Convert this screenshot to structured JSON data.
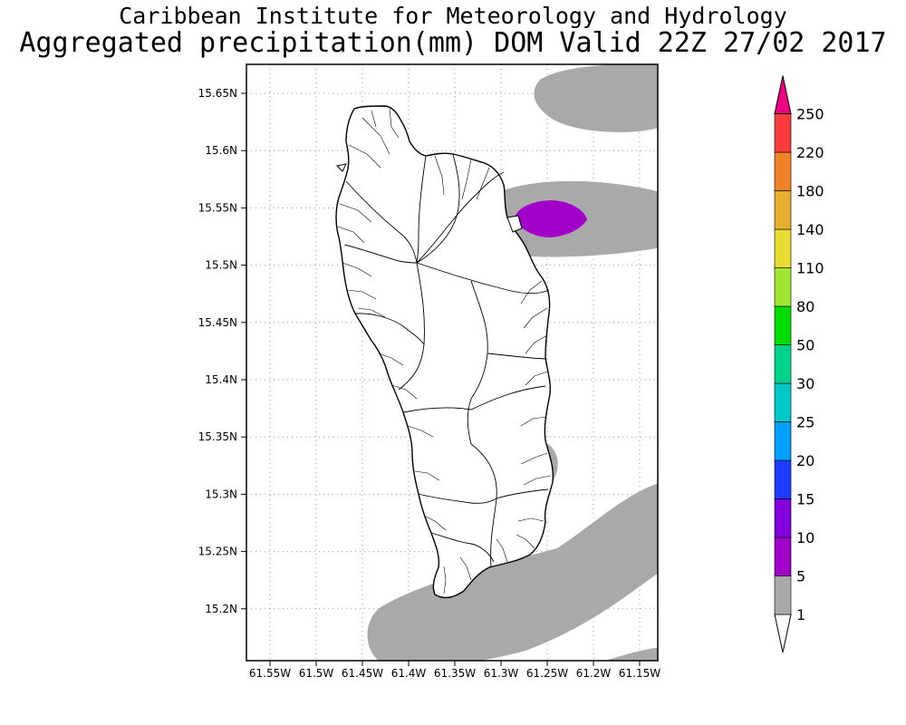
{
  "header": {
    "institute": "Caribbean Institute for Meteorology and Hydrology",
    "product": "Aggregated precipitation(mm) DOM Valid 22Z 27/02 2017"
  },
  "map": {
    "region": "Dominica",
    "latitude_labels": [
      "15.65N",
      "15.6N",
      "15.55N",
      "15.5N",
      "15.45N",
      "15.4N",
      "15.35N",
      "15.3N",
      "15.25N",
      "15.2N"
    ],
    "longitude_labels": [
      "61.55W",
      "61.5W",
      "61.45W",
      "61.4W",
      "61.35W",
      "61.3W",
      "61.25W",
      "61.2W",
      "61.15W"
    ],
    "gridlines": "dotted",
    "land_color": "#ffffff",
    "precip_fill_color_1_5": "#a9a9a9",
    "precip_fill_color_5_10": "#a000c8"
  },
  "legend": {
    "unit": "mm",
    "levels": [
      "1",
      "5",
      "10",
      "15",
      "20",
      "25",
      "30",
      "50",
      "80",
      "110",
      "140",
      "180",
      "220",
      "250"
    ],
    "colors": [
      "#a9a9a9",
      "#a000c8",
      "#8200dc",
      "#1e3cff",
      "#00a0ff",
      "#00c8c8",
      "#00d28c",
      "#00dc00",
      "#a0e632",
      "#e6dc32",
      "#e6af2d",
      "#f08228",
      "#fa3c3c",
      "#f00082"
    ],
    "top_arrow_color": "#f00082",
    "bottom_arrow_color": "#ffffff"
  }
}
